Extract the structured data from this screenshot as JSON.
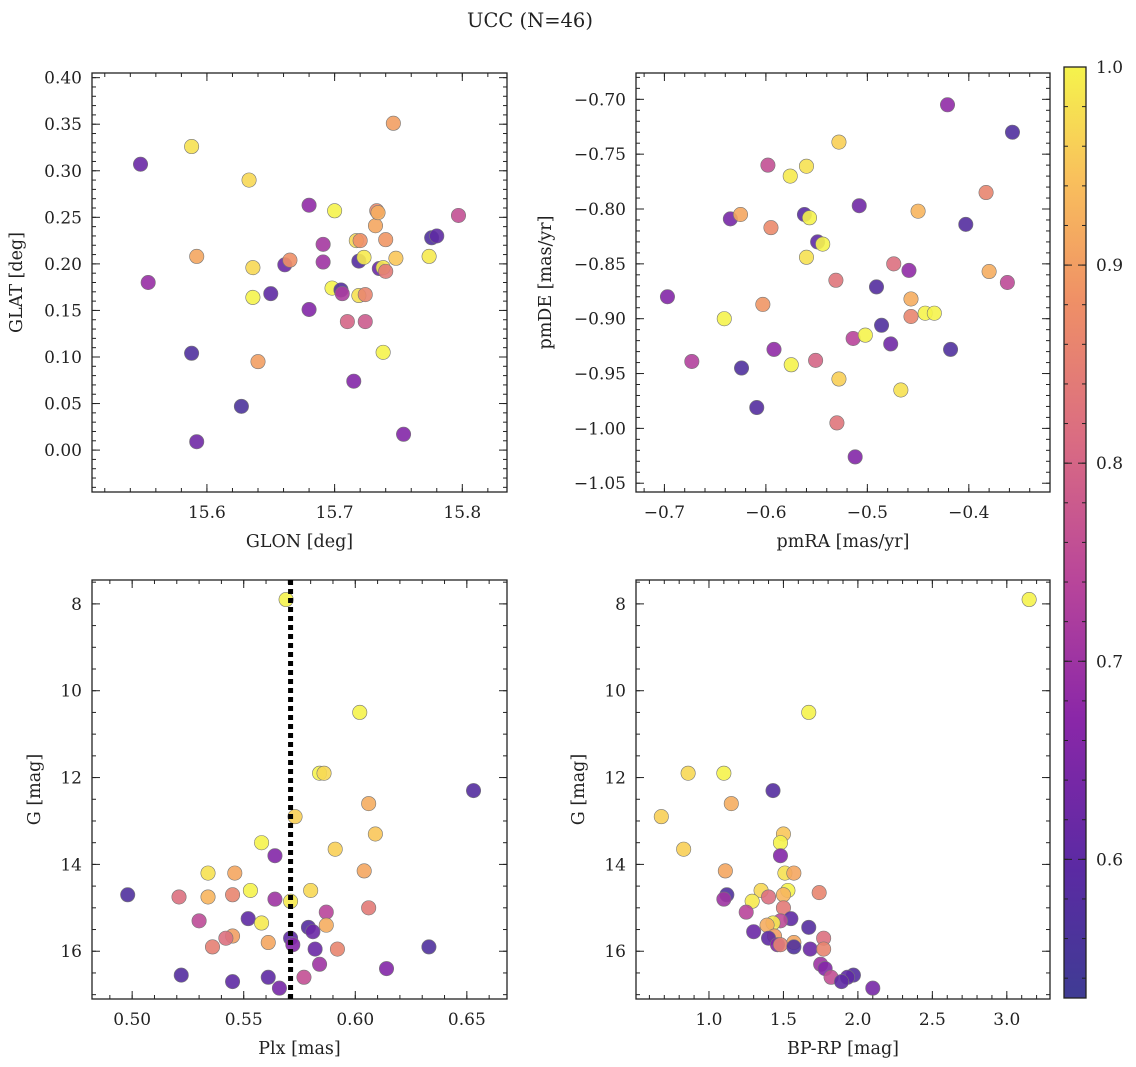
{
  "suptitle": "UCC (N=46)",
  "chart_data": [
    {
      "type": "scatter",
      "xlabel": "GLON [deg]",
      "ylabel": "GLAT [deg]",
      "xlim": [
        15.51,
        15.835
      ],
      "ylim": [
        -0.045,
        0.405
      ],
      "xticks": [
        15.6,
        15.7,
        15.8
      ],
      "xtick_labels": [
        "15.6",
        "15.7",
        "15.8"
      ],
      "yticks": [
        0.0,
        0.05,
        0.1,
        0.15,
        0.2,
        0.25,
        0.3,
        0.35,
        0.4
      ],
      "ytick_labels": [
        "0.00",
        "0.05",
        "0.10",
        "0.15",
        "0.20",
        "0.25",
        "0.30",
        "0.35",
        "0.40"
      ],
      "points": [
        {
          "x": 15.548,
          "y": 0.307,
          "p": 0.62
        },
        {
          "x": 15.554,
          "y": 0.18,
          "p": 0.69
        },
        {
          "x": 15.588,
          "y": 0.104,
          "p": 0.57
        },
        {
          "x": 15.588,
          "y": 0.326,
          "p": 0.98
        },
        {
          "x": 15.592,
          "y": 0.208,
          "p": 0.91
        },
        {
          "x": 15.592,
          "y": 0.009,
          "p": 0.63
        },
        {
          "x": 15.627,
          "y": 0.047,
          "p": 0.56
        },
        {
          "x": 15.633,
          "y": 0.29,
          "p": 0.97
        },
        {
          "x": 15.636,
          "y": 0.164,
          "p": 1.0
        },
        {
          "x": 15.636,
          "y": 0.196,
          "p": 0.97
        },
        {
          "x": 15.64,
          "y": 0.095,
          "p": 0.9
        },
        {
          "x": 15.65,
          "y": 0.168,
          "p": 0.6
        },
        {
          "x": 15.661,
          "y": 0.199,
          "p": 0.62
        },
        {
          "x": 15.665,
          "y": 0.204,
          "p": 0.88
        },
        {
          "x": 15.68,
          "y": 0.263,
          "p": 0.68
        },
        {
          "x": 15.68,
          "y": 0.151,
          "p": 0.66
        },
        {
          "x": 15.691,
          "y": 0.221,
          "p": 0.71
        },
        {
          "x": 15.691,
          "y": 0.202,
          "p": 0.7
        },
        {
          "x": 15.698,
          "y": 0.174,
          "p": 1.0
        },
        {
          "x": 15.7,
          "y": 0.257,
          "p": 1.0
        },
        {
          "x": 15.705,
          "y": 0.172,
          "p": 0.58
        },
        {
          "x": 15.706,
          "y": 0.168,
          "p": 0.72
        },
        {
          "x": 15.71,
          "y": 0.138,
          "p": 0.8
        },
        {
          "x": 15.715,
          "y": 0.074,
          "p": 0.66
        },
        {
          "x": 15.717,
          "y": 0.225,
          "p": 0.97
        },
        {
          "x": 15.719,
          "y": 0.166,
          "p": 0.98
        },
        {
          "x": 15.719,
          "y": 0.203,
          "p": 0.58
        },
        {
          "x": 15.72,
          "y": 0.225,
          "p": 0.88
        },
        {
          "x": 15.723,
          "y": 0.207,
          "p": 0.99
        },
        {
          "x": 15.724,
          "y": 0.167,
          "p": 0.86
        },
        {
          "x": 15.724,
          "y": 0.138,
          "p": 0.78
        },
        {
          "x": 15.732,
          "y": 0.241,
          "p": 0.91
        },
        {
          "x": 15.733,
          "y": 0.257,
          "p": 0.87
        },
        {
          "x": 15.734,
          "y": 0.255,
          "p": 0.92
        },
        {
          "x": 15.735,
          "y": 0.195,
          "p": 0.62
        },
        {
          "x": 15.738,
          "y": 0.196,
          "p": 0.99
        },
        {
          "x": 15.738,
          "y": 0.105,
          "p": 1.0
        },
        {
          "x": 15.74,
          "y": 0.226,
          "p": 0.89
        },
        {
          "x": 15.74,
          "y": 0.192,
          "p": 0.84
        },
        {
          "x": 15.746,
          "y": 0.351,
          "p": 0.9
        },
        {
          "x": 15.748,
          "y": 0.206,
          "p": 0.95
        },
        {
          "x": 15.754,
          "y": 0.017,
          "p": 0.66
        },
        {
          "x": 15.774,
          "y": 0.208,
          "p": 0.99
        },
        {
          "x": 15.776,
          "y": 0.228,
          "p": 0.57
        },
        {
          "x": 15.78,
          "y": 0.23,
          "p": 0.6
        },
        {
          "x": 15.797,
          "y": 0.252,
          "p": 0.76
        }
      ]
    },
    {
      "type": "scatter",
      "xlabel": "pmRA [mas/yr]",
      "ylabel": "pmDE [mas/yr]",
      "xlim": [
        -0.728,
        -0.32
      ],
      "ylim": [
        -1.058,
        -0.676
      ],
      "xticks": [
        -0.7,
        -0.6,
        -0.5,
        -0.4
      ],
      "xtick_labels": [
        "−0.7",
        "−0.6",
        "−0.5",
        "−0.4"
      ],
      "yticks": [
        -1.05,
        -1.0,
        -0.95,
        -0.9,
        -0.85,
        -0.8,
        -0.75,
        -0.7
      ],
      "ytick_labels": [
        "−1.05",
        "−1.00",
        "−0.95",
        "−0.90",
        "−0.85",
        "−0.80",
        "−0.75",
        "−0.70"
      ],
      "points": [
        {
          "x": -0.697,
          "y": -0.88,
          "p": 0.66
        },
        {
          "x": -0.673,
          "y": -0.939,
          "p": 0.73
        },
        {
          "x": -0.641,
          "y": -0.9,
          "p": 1.0
        },
        {
          "x": -0.635,
          "y": -0.809,
          "p": 0.64
        },
        {
          "x": -0.625,
          "y": -0.805,
          "p": 0.91
        },
        {
          "x": -0.624,
          "y": -0.945,
          "p": 0.57
        },
        {
          "x": -0.609,
          "y": -0.981,
          "p": 0.58
        },
        {
          "x": -0.603,
          "y": -0.887,
          "p": 0.89
        },
        {
          "x": -0.598,
          "y": -0.76,
          "p": 0.76
        },
        {
          "x": -0.595,
          "y": -0.817,
          "p": 0.87
        },
        {
          "x": -0.592,
          "y": -0.928,
          "p": 0.68
        },
        {
          "x": -0.576,
          "y": -0.77,
          "p": 0.99
        },
        {
          "x": -0.575,
          "y": -0.942,
          "p": 1.0
        },
        {
          "x": -0.562,
          "y": -0.805,
          "p": 0.59
        },
        {
          "x": -0.56,
          "y": -0.844,
          "p": 0.98
        },
        {
          "x": -0.56,
          "y": -0.761,
          "p": 0.98
        },
        {
          "x": -0.557,
          "y": -0.808,
          "p": 1.0
        },
        {
          "x": -0.551,
          "y": -0.938,
          "p": 0.8
        },
        {
          "x": -0.549,
          "y": -0.83,
          "p": 0.6
        },
        {
          "x": -0.544,
          "y": -0.832,
          "p": 1.0
        },
        {
          "x": -0.531,
          "y": -0.865,
          "p": 0.83
        },
        {
          "x": -0.53,
          "y": -0.995,
          "p": 0.83
        },
        {
          "x": -0.528,
          "y": -0.739,
          "p": 0.96
        },
        {
          "x": -0.528,
          "y": -0.955,
          "p": 0.96
        },
        {
          "x": -0.514,
          "y": -0.918,
          "p": 0.74
        },
        {
          "x": -0.512,
          "y": -1.026,
          "p": 0.66
        },
        {
          "x": -0.508,
          "y": -0.797,
          "p": 0.63
        },
        {
          "x": -0.502,
          "y": -0.915,
          "p": 1.0
        },
        {
          "x": -0.491,
          "y": -0.871,
          "p": 0.58
        },
        {
          "x": -0.486,
          "y": -0.906,
          "p": 0.57
        },
        {
          "x": -0.477,
          "y": -0.923,
          "p": 0.63
        },
        {
          "x": -0.474,
          "y": -0.85,
          "p": 0.82
        },
        {
          "x": -0.467,
          "y": -0.965,
          "p": 0.98
        },
        {
          "x": -0.459,
          "y": -0.856,
          "p": 0.68
        },
        {
          "x": -0.457,
          "y": -0.882,
          "p": 0.92
        },
        {
          "x": -0.457,
          "y": -0.898,
          "p": 0.86
        },
        {
          "x": -0.45,
          "y": -0.802,
          "p": 0.93
        },
        {
          "x": -0.443,
          "y": -0.895,
          "p": 1.0
        },
        {
          "x": -0.434,
          "y": -0.895,
          "p": 1.0
        },
        {
          "x": -0.421,
          "y": -0.705,
          "p": 0.68
        },
        {
          "x": -0.418,
          "y": -0.928,
          "p": 0.57
        },
        {
          "x": -0.403,
          "y": -0.814,
          "p": 0.58
        },
        {
          "x": -0.383,
          "y": -0.785,
          "p": 0.86
        },
        {
          "x": -0.38,
          "y": -0.857,
          "p": 0.92
        },
        {
          "x": -0.362,
          "y": -0.867,
          "p": 0.75
        },
        {
          "x": -0.357,
          "y": -0.73,
          "p": 0.57
        }
      ]
    },
    {
      "type": "scatter",
      "xlabel": "Plx [mas]",
      "ylabel": "G [mag]",
      "xlim": [
        0.482,
        0.668
      ],
      "ylim": [
        17.1,
        7.45
      ],
      "y_inverted": true,
      "vline": {
        "x": 0.571,
        "style": "dotted"
      },
      "xticks": [
        0.5,
        0.55,
        0.6,
        0.65
      ],
      "xtick_labels": [
        "0.50",
        "0.55",
        "0.60",
        "0.65"
      ],
      "yticks": [
        8,
        10,
        12,
        14,
        16
      ],
      "ytick_labels": [
        "8",
        "10",
        "12",
        "14",
        "16"
      ],
      "points": [
        {
          "x": 0.569,
          "y": 7.9,
          "p": 1.0
        },
        {
          "x": 0.602,
          "y": 10.5,
          "p": 1.0
        },
        {
          "x": 0.584,
          "y": 11.9,
          "p": 1.0
        },
        {
          "x": 0.586,
          "y": 11.9,
          "p": 0.97
        },
        {
          "x": 0.653,
          "y": 12.3,
          "p": 0.58
        },
        {
          "x": 0.606,
          "y": 12.6,
          "p": 0.92
        },
        {
          "x": 0.573,
          "y": 12.9,
          "p": 0.96
        },
        {
          "x": 0.609,
          "y": 13.3,
          "p": 0.95
        },
        {
          "x": 0.558,
          "y": 13.5,
          "p": 1.0
        },
        {
          "x": 0.591,
          "y": 13.65,
          "p": 0.96
        },
        {
          "x": 0.564,
          "y": 13.8,
          "p": 0.66
        },
        {
          "x": 0.604,
          "y": 14.15,
          "p": 0.91
        },
        {
          "x": 0.534,
          "y": 14.2,
          "p": 0.98
        },
        {
          "x": 0.546,
          "y": 14.2,
          "p": 0.91
        },
        {
          "x": 0.553,
          "y": 14.6,
          "p": 1.0
        },
        {
          "x": 0.58,
          "y": 14.6,
          "p": 0.97
        },
        {
          "x": 0.498,
          "y": 14.7,
          "p": 0.57
        },
        {
          "x": 0.521,
          "y": 14.75,
          "p": 0.82
        },
        {
          "x": 0.534,
          "y": 14.75,
          "p": 0.93
        },
        {
          "x": 0.545,
          "y": 14.7,
          "p": 0.86
        },
        {
          "x": 0.564,
          "y": 14.8,
          "p": 0.7
        },
        {
          "x": 0.571,
          "y": 14.85,
          "p": 0.99
        },
        {
          "x": 0.606,
          "y": 15.0,
          "p": 0.84
        },
        {
          "x": 0.587,
          "y": 15.1,
          "p": 0.74
        },
        {
          "x": 0.552,
          "y": 15.25,
          "p": 0.6
        },
        {
          "x": 0.53,
          "y": 15.3,
          "p": 0.75
        },
        {
          "x": 0.558,
          "y": 15.35,
          "p": 0.99
        },
        {
          "x": 0.587,
          "y": 15.4,
          "p": 0.92
        },
        {
          "x": 0.579,
          "y": 15.45,
          "p": 0.58
        },
        {
          "x": 0.581,
          "y": 15.55,
          "p": 0.62
        },
        {
          "x": 0.545,
          "y": 15.65,
          "p": 0.9
        },
        {
          "x": 0.542,
          "y": 15.7,
          "p": 0.82
        },
        {
          "x": 0.571,
          "y": 15.7,
          "p": 0.6
        },
        {
          "x": 0.561,
          "y": 15.8,
          "p": 0.91
        },
        {
          "x": 0.572,
          "y": 15.85,
          "p": 0.66
        },
        {
          "x": 0.536,
          "y": 15.9,
          "p": 0.85
        },
        {
          "x": 0.633,
          "y": 15.9,
          "p": 0.57
        },
        {
          "x": 0.582,
          "y": 15.95,
          "p": 0.62
        },
        {
          "x": 0.592,
          "y": 15.95,
          "p": 0.86
        },
        {
          "x": 0.584,
          "y": 16.3,
          "p": 0.7
        },
        {
          "x": 0.614,
          "y": 16.4,
          "p": 0.66
        },
        {
          "x": 0.522,
          "y": 16.55,
          "p": 0.58
        },
        {
          "x": 0.561,
          "y": 16.6,
          "p": 0.6
        },
        {
          "x": 0.577,
          "y": 16.6,
          "p": 0.76
        },
        {
          "x": 0.545,
          "y": 16.7,
          "p": 0.6
        },
        {
          "x": 0.566,
          "y": 16.85,
          "p": 0.64
        }
      ]
    },
    {
      "type": "scatter",
      "xlabel": "BP-RP [mag]",
      "ylabel": "G [mag]",
      "xlim": [
        0.51,
        3.29
      ],
      "ylim": [
        17.1,
        7.45
      ],
      "y_inverted": true,
      "xticks": [
        1.0,
        1.5,
        2.0,
        2.5,
        3.0
      ],
      "xtick_labels": [
        "1.0",
        "1.5",
        "2.0",
        "2.5",
        "3.0"
      ],
      "yticks": [
        8,
        10,
        12,
        14,
        16
      ],
      "ytick_labels": [
        "8",
        "10",
        "12",
        "14",
        "16"
      ],
      "points": [
        {
          "x": 3.15,
          "y": 7.9,
          "p": 1.0
        },
        {
          "x": 1.67,
          "y": 10.5,
          "p": 1.0
        },
        {
          "x": 0.86,
          "y": 11.9,
          "p": 0.97
        },
        {
          "x": 1.1,
          "y": 11.9,
          "p": 1.0
        },
        {
          "x": 1.43,
          "y": 12.3,
          "p": 0.58
        },
        {
          "x": 1.15,
          "y": 12.6,
          "p": 0.92
        },
        {
          "x": 0.68,
          "y": 12.9,
          "p": 0.96
        },
        {
          "x": 1.5,
          "y": 13.3,
          "p": 0.95
        },
        {
          "x": 1.48,
          "y": 13.5,
          "p": 1.0
        },
        {
          "x": 0.83,
          "y": 13.65,
          "p": 0.96
        },
        {
          "x": 1.48,
          "y": 13.8,
          "p": 0.66
        },
        {
          "x": 1.11,
          "y": 14.15,
          "p": 0.91
        },
        {
          "x": 1.51,
          "y": 14.2,
          "p": 0.98
        },
        {
          "x": 1.57,
          "y": 14.2,
          "p": 0.91
        },
        {
          "x": 1.53,
          "y": 14.6,
          "p": 1.0
        },
        {
          "x": 1.35,
          "y": 14.6,
          "p": 0.97
        },
        {
          "x": 1.12,
          "y": 14.7,
          "p": 0.57
        },
        {
          "x": 1.74,
          "y": 14.65,
          "p": 0.86
        },
        {
          "x": 1.4,
          "y": 14.75,
          "p": 0.82
        },
        {
          "x": 1.5,
          "y": 14.7,
          "p": 0.93
        },
        {
          "x": 1.1,
          "y": 14.8,
          "p": 0.7
        },
        {
          "x": 1.29,
          "y": 14.85,
          "p": 0.99
        },
        {
          "x": 1.5,
          "y": 15.0,
          "p": 0.84
        },
        {
          "x": 1.25,
          "y": 15.1,
          "p": 0.74
        },
        {
          "x": 1.55,
          "y": 15.25,
          "p": 0.6
        },
        {
          "x": 1.48,
          "y": 15.3,
          "p": 0.75
        },
        {
          "x": 1.43,
          "y": 15.35,
          "p": 0.99
        },
        {
          "x": 1.39,
          "y": 15.4,
          "p": 0.92
        },
        {
          "x": 1.67,
          "y": 15.45,
          "p": 0.58
        },
        {
          "x": 1.3,
          "y": 15.55,
          "p": 0.62
        },
        {
          "x": 1.44,
          "y": 15.65,
          "p": 0.9
        },
        {
          "x": 1.77,
          "y": 15.7,
          "p": 0.82
        },
        {
          "x": 1.4,
          "y": 15.7,
          "p": 0.6
        },
        {
          "x": 1.57,
          "y": 15.8,
          "p": 0.91
        },
        {
          "x": 1.46,
          "y": 15.85,
          "p": 0.66
        },
        {
          "x": 1.48,
          "y": 15.85,
          "p": 0.85
        },
        {
          "x": 1.57,
          "y": 15.9,
          "p": 0.57
        },
        {
          "x": 1.68,
          "y": 15.95,
          "p": 0.62
        },
        {
          "x": 1.77,
          "y": 15.95,
          "p": 0.86
        },
        {
          "x": 1.75,
          "y": 16.3,
          "p": 0.7
        },
        {
          "x": 1.78,
          "y": 16.4,
          "p": 0.66
        },
        {
          "x": 1.97,
          "y": 16.55,
          "p": 0.58
        },
        {
          "x": 1.93,
          "y": 16.6,
          "p": 0.6
        },
        {
          "x": 1.82,
          "y": 16.6,
          "p": 0.76
        },
        {
          "x": 1.89,
          "y": 16.7,
          "p": 0.6
        },
        {
          "x": 2.1,
          "y": 16.85,
          "p": 0.64
        }
      ]
    }
  ],
  "colorbar": {
    "colormap": "plasma",
    "range": [
      0.53,
      1.0
    ],
    "ticks": [
      0.6,
      0.7,
      0.8,
      0.9,
      1.0
    ],
    "tick_labels": [
      "0.6",
      "0.7",
      "0.8",
      "0.9",
      "1.0"
    ]
  }
}
